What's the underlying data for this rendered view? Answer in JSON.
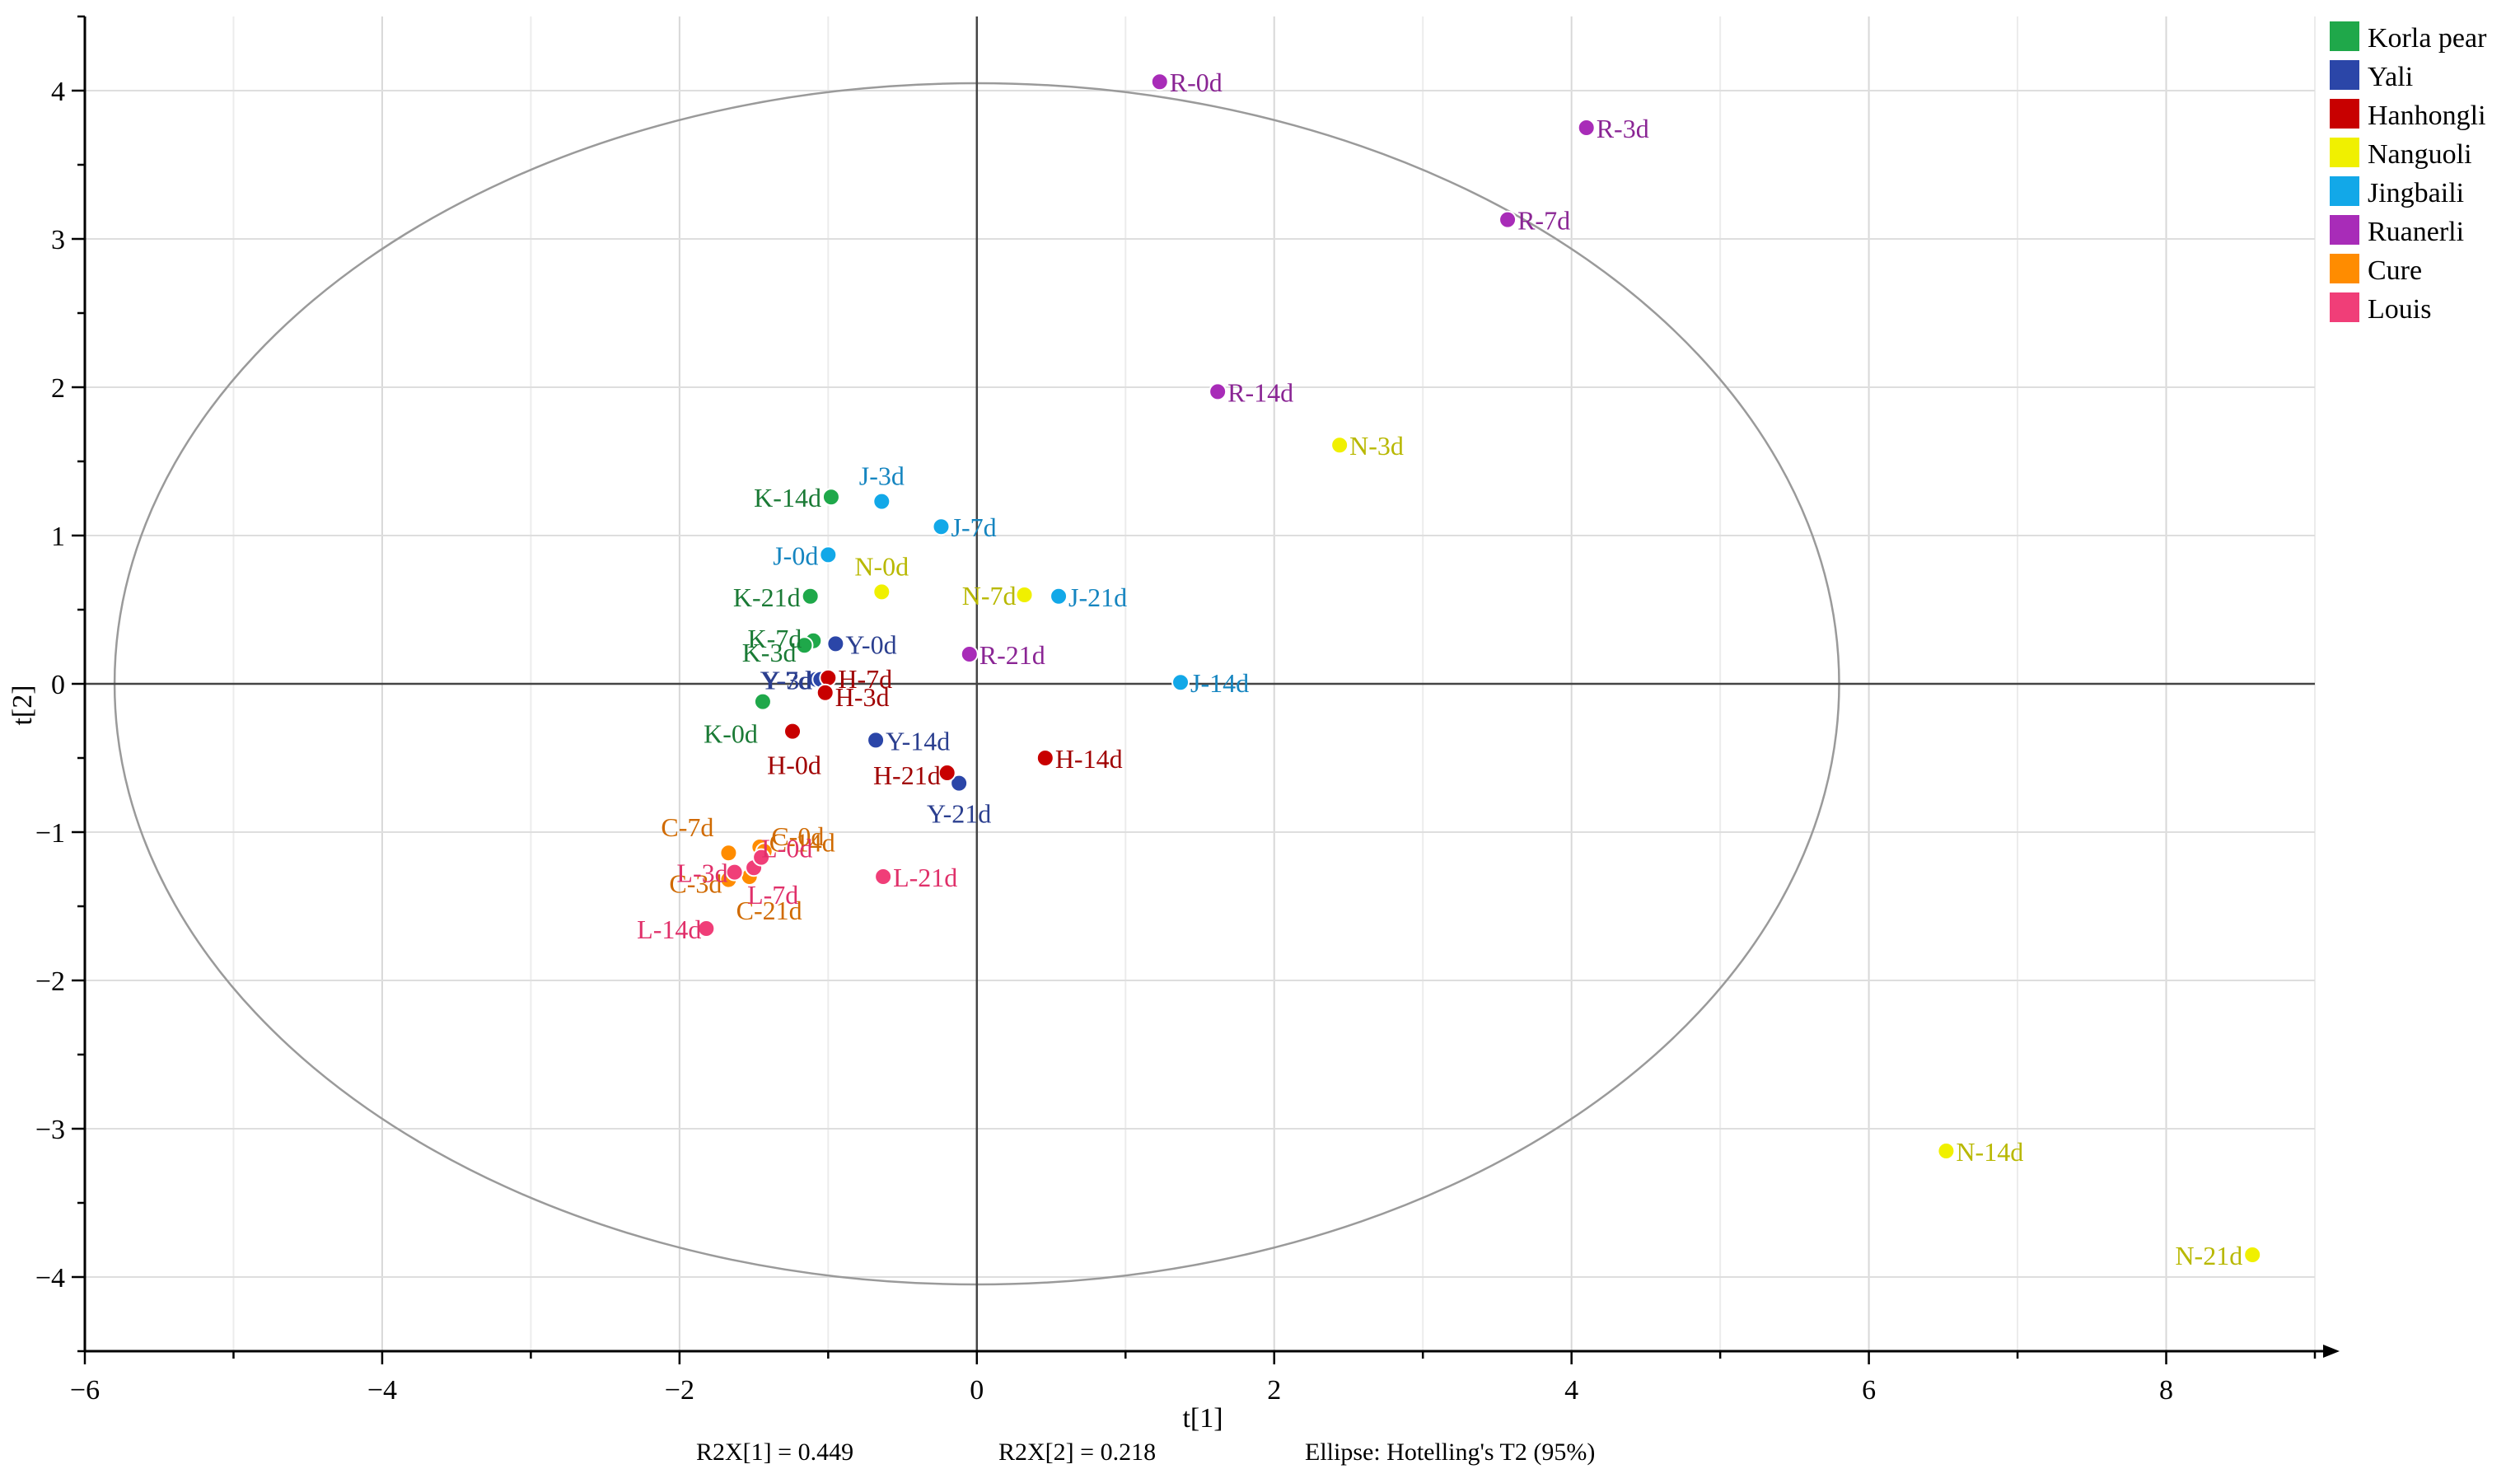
{
  "chart_data": {
    "type": "scatter",
    "xlabel": "t[1]",
    "ylabel": "t[2]",
    "xlim": [
      -6,
      9
    ],
    "ylim": [
      -4.5,
      4.5
    ],
    "xticks": [
      -6,
      -4,
      -2,
      0,
      2,
      4,
      6,
      8
    ],
    "yticks": [
      -4,
      -3,
      -2,
      -1,
      0,
      1,
      2,
      3,
      4
    ],
    "tick_labels_x": [
      "−6",
      "−4",
      "−2",
      "0",
      "2",
      "4",
      "6",
      "8"
    ],
    "tick_labels_y": [
      "−4",
      "−3",
      "−2",
      "−1",
      "0",
      "1",
      "2",
      "3",
      "4"
    ],
    "grid": true,
    "legend_position": "top-right",
    "ellipse": {
      "center": [
        0,
        0
      ],
      "semi_axes": [
        5.8,
        4.05
      ],
      "label": "Ellipse: Hotelling's T2 (95%)"
    },
    "footer": {
      "r2x1": "R2X[1] = 0.449",
      "r2x2": "R2X[2] = 0.218",
      "ellipse": "Ellipse: Hotelling's T2 (95%)"
    },
    "series": [
      {
        "name": "Korla pear",
        "color": "#1fa84a",
        "label_color": "#1a7a35",
        "points": [
          {
            "label": "K-14d",
            "x": -0.98,
            "y": 1.26
          },
          {
            "label": "K-21d",
            "x": -1.12,
            "y": 0.59
          },
          {
            "label": "K-7d",
            "x": -1.1,
            "y": 0.29
          },
          {
            "label": "K-3d",
            "x": -1.16,
            "y": 0.26
          },
          {
            "label": "K-0d",
            "x": -1.44,
            "y": -0.12
          }
        ]
      },
      {
        "name": "Yali",
        "color": "#2b46a8",
        "label_color": "#2b3f8f",
        "points": [
          {
            "label": "Y-0d",
            "x": -0.95,
            "y": 0.27
          },
          {
            "label": "Y-7d",
            "x": -1.08,
            "y": 0.03
          },
          {
            "label": "Y-3d",
            "x": -1.05,
            "y": 0.03
          },
          {
            "label": "Y-14d",
            "x": -0.68,
            "y": -0.38
          },
          {
            "label": "Y-21d",
            "x": -0.12,
            "y": -0.67
          }
        ]
      },
      {
        "name": "Hanhongli",
        "color": "#c80000",
        "label_color": "#a00000",
        "points": [
          {
            "label": "H-7d",
            "x": -1.0,
            "y": 0.04
          },
          {
            "label": "H-3d",
            "x": -1.02,
            "y": -0.06
          },
          {
            "label": "H-0d",
            "x": -1.24,
            "y": -0.32
          },
          {
            "label": "H-21d",
            "x": -0.2,
            "y": -0.6
          },
          {
            "label": "H-14d",
            "x": 0.46,
            "y": -0.5
          }
        ]
      },
      {
        "name": "Nanguoli",
        "color": "#f0f000",
        "label_color": "#b8b800",
        "points": [
          {
            "label": "N-0d",
            "x": -0.64,
            "y": 0.62
          },
          {
            "label": "N-7d",
            "x": 0.32,
            "y": 0.6
          },
          {
            "label": "N-3d",
            "x": 2.44,
            "y": 1.61
          },
          {
            "label": "N-14d",
            "x": 6.52,
            "y": -3.15
          },
          {
            "label": "N-21d",
            "x": 8.58,
            "y": -3.85
          }
        ]
      },
      {
        "name": "Jingbaili",
        "color": "#12a8e8",
        "label_color": "#1585c0",
        "points": [
          {
            "label": "J-3d",
            "x": -0.64,
            "y": 1.23
          },
          {
            "label": "J-7d",
            "x": -0.24,
            "y": 1.06
          },
          {
            "label": "J-0d",
            "x": -1.0,
            "y": 0.87
          },
          {
            "label": "J-21d",
            "x": 0.55,
            "y": 0.59
          },
          {
            "label": "J-14d",
            "x": 1.37,
            "y": 0.01
          }
        ]
      },
      {
        "name": "Ruanerli",
        "color": "#a82cb8",
        "label_color": "#8a2594",
        "points": [
          {
            "label": "R-0d",
            "x": 1.23,
            "y": 4.06
          },
          {
            "label": "R-3d",
            "x": 4.1,
            "y": 3.75
          },
          {
            "label": "R-7d",
            "x": 3.57,
            "y": 3.13
          },
          {
            "label": "R-14d",
            "x": 1.62,
            "y": 1.97
          },
          {
            "label": "R-21d",
            "x": -0.05,
            "y": 0.2
          }
        ]
      },
      {
        "name": "Cure",
        "color": "#ff8c00",
        "label_color": "#d06a00",
        "points": [
          {
            "label": "C-7d",
            "x": -1.67,
            "y": -1.14
          },
          {
            "label": "C-0d",
            "x": -1.46,
            "y": -1.1
          },
          {
            "label": "C-3d",
            "x": -1.67,
            "y": -1.32
          },
          {
            "label": "C-21d",
            "x": -1.53,
            "y": -1.3
          },
          {
            "label": "C-14d",
            "x": -1.43,
            "y": -1.13
          }
        ]
      },
      {
        "name": "Louis",
        "color": "#f03e78",
        "label_color": "#e0306a",
        "points": [
          {
            "label": "L-3d",
            "x": -1.63,
            "y": -1.27
          },
          {
            "label": "L-7d",
            "x": -1.5,
            "y": -1.24
          },
          {
            "label": "L-14d",
            "x": -1.82,
            "y": -1.65
          },
          {
            "label": "L-21d",
            "x": -0.63,
            "y": -1.3
          },
          {
            "label": "L-0d",
            "x": -1.45,
            "y": -1.17
          }
        ]
      }
    ]
  }
}
